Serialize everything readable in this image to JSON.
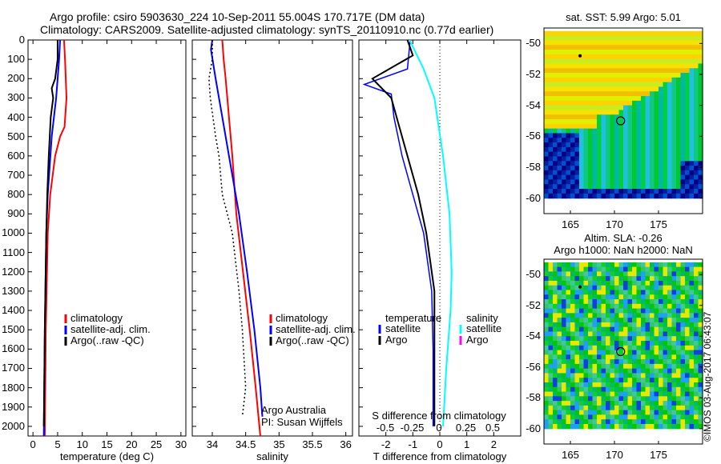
{
  "header": {
    "line1": "Argo profile: csiro 5903630_224 10-Sep-2011 55.004S 170.717E (DM data)",
    "line2": "Climatology: CARS2009. Satellite-adjusted climatology: synTS_20110910.nc (0.77d earlier)"
  },
  "footer_stamp": "©IMOS 03-Aug-2017 06:43:07",
  "colors": {
    "climatology": "#ff0000",
    "satellite": "#0000ff",
    "argo": "#000000",
    "sal_satellite": "#00ffff",
    "sal_argo": "#ff00ff"
  },
  "chart_data": [
    {
      "type": "line",
      "title": "",
      "xlabel": "temperature (deg C)",
      "ylabel": "",
      "xlim": [
        -1,
        31
      ],
      "ylim": [
        2050,
        0
      ],
      "xticks": [
        "0",
        "5",
        "10",
        "15",
        "20",
        "25",
        "30"
      ],
      "xtick_values": [
        0,
        5,
        10,
        15,
        20,
        25,
        30
      ],
      "yticks": [
        "0",
        "100",
        "200",
        "300",
        "400",
        "500",
        "600",
        "700",
        "800",
        "900",
        "1000",
        "1100",
        "1200",
        "1300",
        "1400",
        "1500",
        "1600",
        "1700",
        "1800",
        "1900",
        "2000"
      ],
      "legend": [
        "climatology",
        "satellite-adj. clim.",
        "Argo(..raw -QC)"
      ],
      "series": [
        {
          "name": "climatology",
          "depth": [
            0,
            100,
            300,
            450,
            500,
            600,
            800,
            1000,
            1500,
            2050
          ],
          "values": [
            6.3,
            6.5,
            6.8,
            6.4,
            5.5,
            4.5,
            3.5,
            3.0,
            2.6,
            2.4
          ]
        },
        {
          "name": "satellite-adj. clim.",
          "depth": [
            0,
            100,
            300,
            500,
            800,
            1000,
            1500,
            2050
          ],
          "values": [
            5.5,
            5.3,
            4.7,
            3.8,
            3.0,
            2.7,
            2.4,
            2.2
          ]
        },
        {
          "name": "Argo(..raw -QC)",
          "depth": [
            0,
            100,
            200,
            250,
            300,
            400,
            600,
            800,
            1000,
            1500,
            2000
          ],
          "values": [
            5.0,
            5.0,
            4.5,
            3.8,
            4.1,
            3.6,
            3.2,
            2.9,
            2.7,
            2.4,
            2.2
          ]
        }
      ]
    },
    {
      "type": "line",
      "xlabel": "salinity",
      "xlim": [
        33.7,
        36.1
      ],
      "ylim": [
        2050,
        0
      ],
      "xticks": [
        "34",
        "34.5",
        "35",
        "35.5",
        "36"
      ],
      "xtick_values": [
        34,
        34.5,
        35,
        35.5,
        36
      ],
      "legend": [
        "climatology",
        "satellite-adj. clim.",
        "Argo(..raw -QC)"
      ],
      "annotation": [
        "Argo Australia",
        "PI: Susan Wijffels"
      ],
      "series": [
        {
          "name": "climatology",
          "depth": [
            0,
            100,
            200,
            400,
            600,
            900,
            1200,
            1500,
            1800,
            2050
          ],
          "values": [
            34.15,
            34.17,
            34.2,
            34.25,
            34.3,
            34.36,
            34.46,
            34.56,
            34.65,
            34.72
          ]
        },
        {
          "name": "satellite-adj. clim.",
          "depth": [
            0,
            50,
            200,
            500,
            700,
            900,
            1200,
            1500,
            1800,
            1950
          ],
          "values": [
            34.0,
            33.98,
            34.05,
            34.2,
            34.3,
            34.4,
            34.52,
            34.63,
            34.72,
            34.75
          ]
        },
        {
          "name": "Argo(..raw -QC)",
          "depth": [
            0,
            100,
            200,
            300,
            500,
            600,
            800,
            1000,
            1300,
            1500,
            1800,
            1950
          ],
          "values": [
            34.0,
            34.0,
            33.95,
            33.97,
            34.05,
            34.1,
            34.15,
            34.3,
            34.4,
            34.45,
            34.5,
            34.45
          ]
        }
      ]
    },
    {
      "type": "line",
      "xlabel": "T difference from climatology",
      "xlabel2": "S difference from climatology",
      "xlim": [
        -3,
        3
      ],
      "ylim": [
        2050,
        0
      ],
      "xticks": [
        "-2",
        "-1",
        "0",
        "1",
        "2"
      ],
      "xtick_values": [
        -2,
        -1,
        0,
        1,
        2
      ],
      "xticks2": [
        "-0.5",
        "-0.25",
        "0",
        "0.25",
        "0.5"
      ],
      "xtick2_values": [
        -0.5,
        -0.25,
        0,
        0.25,
        0.5
      ],
      "legend_t": [
        "temperature",
        "satellite",
        "Argo"
      ],
      "legend_s": [
        "salinity",
        "satellite",
        "Argo"
      ],
      "series": [
        {
          "name": "temperature satellite",
          "depth": [
            0,
            150,
            230,
            280,
            400,
            600,
            800,
            1000,
            1300,
            1600,
            2000
          ],
          "values": [
            -1.1,
            -1.2,
            -2.8,
            -1.8,
            -1.7,
            -1.4,
            -1.0,
            -0.6,
            -0.3,
            -0.25,
            -0.25
          ]
        },
        {
          "name": "temperature Argo",
          "depth": [
            0,
            80,
            200,
            300,
            400,
            600,
            700,
            800,
            1000,
            1300,
            2000
          ],
          "values": [
            -1.2,
            -1.0,
            -2.5,
            -1.8,
            -1.6,
            -1.2,
            -1.0,
            -0.8,
            -0.5,
            -0.2,
            -0.2
          ]
        },
        {
          "name": "salinity satellite",
          "depth": [
            0,
            150,
            300,
            600,
            900,
            1200,
            1400,
            1700,
            2000
          ],
          "values": [
            -0.28,
            -0.15,
            -0.05,
            0.03,
            0.09,
            0.11,
            0.1,
            0.06,
            0.03
          ]
        }
      ]
    },
    {
      "type": "heatmap",
      "title": "sat. SST: 5.99 Argo: 5.01",
      "xticks": [
        "165",
        "170",
        "175"
      ],
      "yticks": [
        "-50",
        "-52",
        "-54",
        "-56",
        "-58",
        "-60"
      ]
    },
    {
      "type": "heatmap",
      "title": [
        "Altim. SLA: -0.26",
        "Argo h1000: NaN h2000: NaN"
      ],
      "xticks": [
        "165",
        "170",
        "175"
      ],
      "yticks": [
        "-50",
        "-52",
        "-54",
        "-56",
        "-58",
        "-60"
      ]
    }
  ]
}
